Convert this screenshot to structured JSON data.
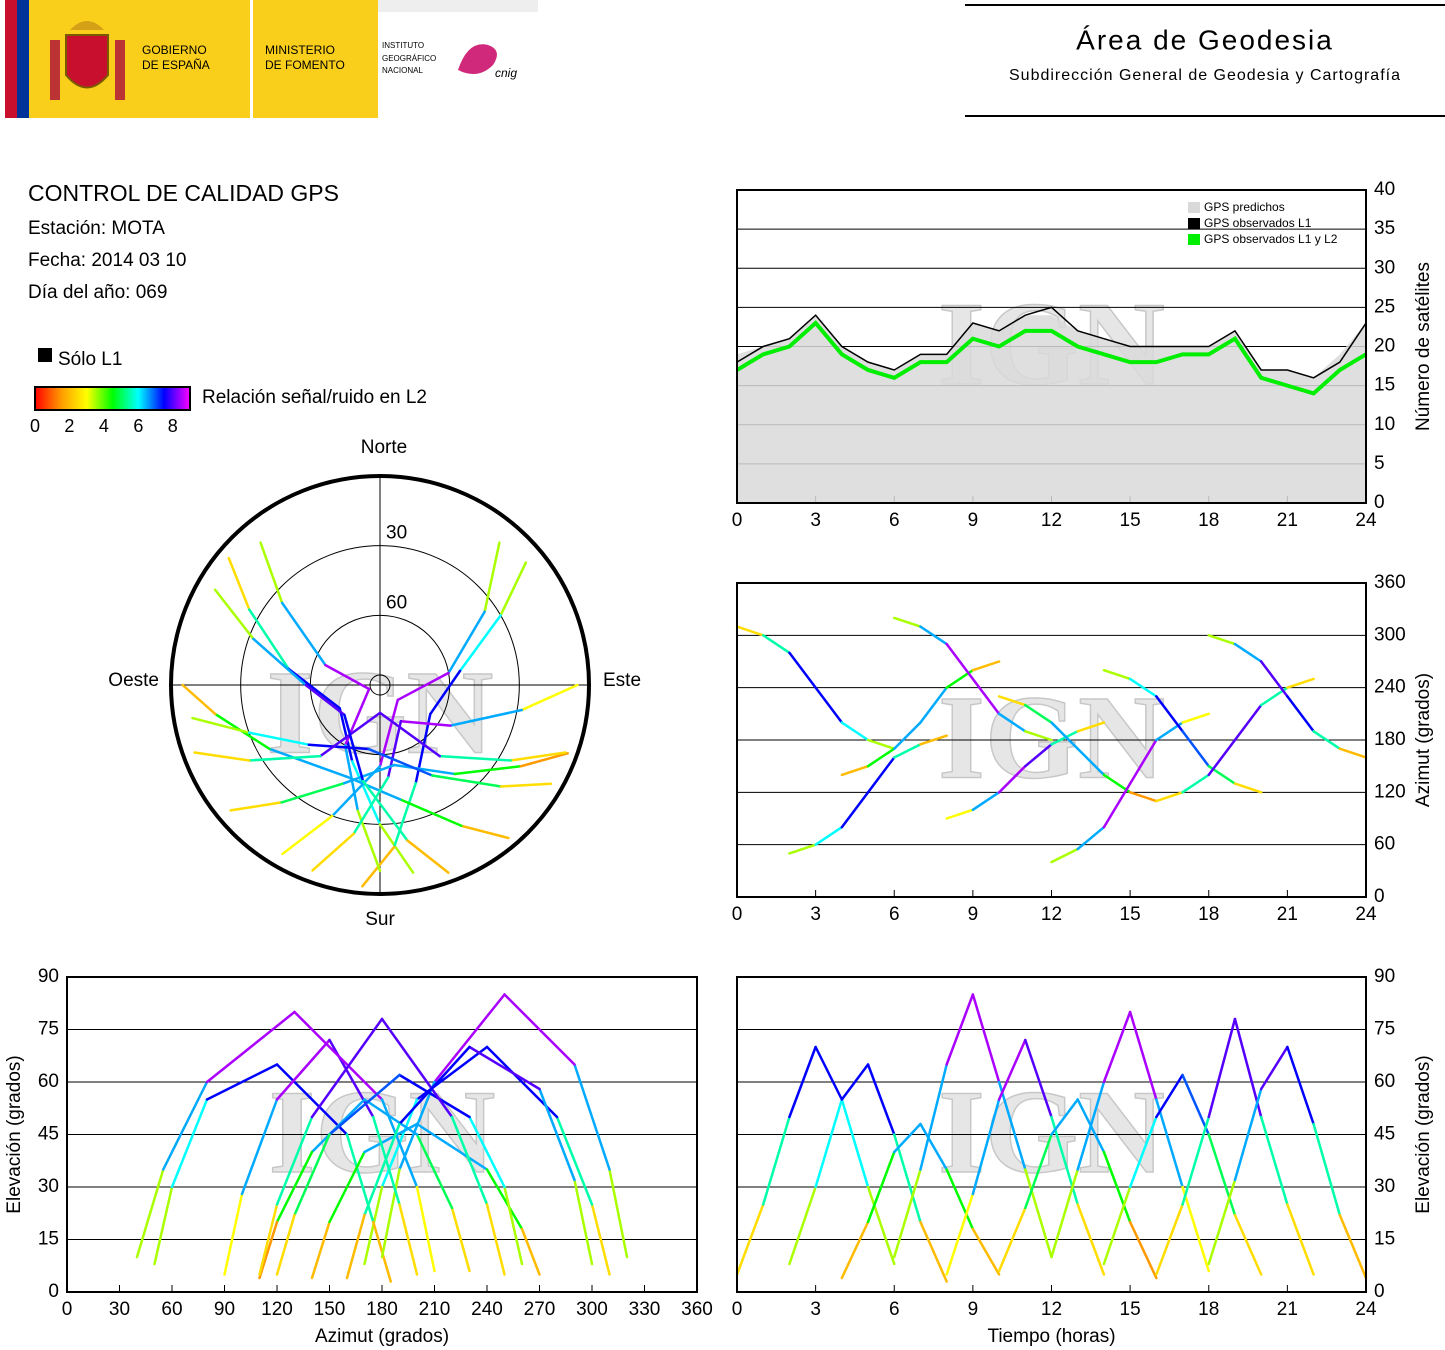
{
  "header": {
    "gobierno": [
      "GOBIERNO",
      "DE ESPAÑA"
    ],
    "ministerio": [
      "MINISTERIO",
      "DE FOMENTO"
    ],
    "instituto": [
      "INSTITUTO",
      "GEOGRÁFICO",
      "NACIONAL"
    ],
    "cnig": "cnig",
    "area": "Área de Geodesia",
    "subdireccion": "Subdirección General de Geodesia y Cartografía"
  },
  "info": {
    "title": "CONTROL DE CALIDAD GPS",
    "station": "Estación: MOTA",
    "date": "Fecha: 2014 03 10",
    "doy": "Día del año: 069",
    "l1_only": "Sólo L1",
    "l1_color": "#000000",
    "colorbar": {
      "label": "Relación señal/ruido en L2",
      "lim": [
        0,
        9
      ],
      "ticks": [
        0,
        2,
        4,
        6,
        8
      ],
      "colors": [
        "#ff0000",
        "#ff9900",
        "#ffff00",
        "#00ff00",
        "#00ffff",
        "#0000ff",
        "#ff00ff"
      ]
    }
  },
  "tracks": [
    {
      "time": [
        0,
        1,
        2,
        3,
        4,
        5,
        6
      ],
      "azimuth": [
        310,
        300,
        280,
        240,
        200,
        180,
        170
      ],
      "elevation": [
        5,
        25,
        50,
        70,
        55,
        30,
        8
      ],
      "snr": [
        1,
        4,
        7,
        8,
        7,
        5,
        2
      ]
    },
    {
      "time": [
        2,
        3,
        4,
        5,
        6,
        7,
        8
      ],
      "azimuth": [
        50,
        60,
        80,
        120,
        160,
        175,
        185
      ],
      "elevation": [
        8,
        30,
        55,
        65,
        45,
        20,
        3
      ],
      "snr": [
        2,
        5,
        7,
        8,
        7,
        4,
        0
      ]
    },
    {
      "time": [
        4,
        5,
        6,
        7,
        8,
        9,
        10
      ],
      "azimuth": [
        140,
        150,
        170,
        200,
        240,
        260,
        270
      ],
      "elevation": [
        4,
        20,
        40,
        48,
        35,
        18,
        5
      ],
      "snr": [
        1,
        3,
        6,
        7,
        6,
        3,
        1
      ]
    },
    {
      "time": [
        6,
        7,
        8,
        9,
        10,
        11,
        12
      ],
      "azimuth": [
        320,
        310,
        290,
        250,
        210,
        190,
        180
      ],
      "elevation": [
        10,
        35,
        65,
        85,
        60,
        35,
        10
      ],
      "snr": [
        2,
        5,
        8,
        9,
        8,
        5,
        2
      ]
    },
    {
      "time": [
        8,
        9,
        10,
        11,
        12,
        13,
        14
      ],
      "azimuth": [
        90,
        100,
        120,
        150,
        175,
        190,
        200
      ],
      "elevation": [
        5,
        28,
        55,
        72,
        50,
        25,
        5
      ],
      "snr": [
        1,
        5,
        8,
        9,
        7,
        4,
        1
      ]
    },
    {
      "time": [
        10,
        11,
        12,
        13,
        14,
        15,
        16
      ],
      "azimuth": [
        230,
        220,
        200,
        170,
        140,
        120,
        110
      ],
      "elevation": [
        6,
        24,
        45,
        55,
        40,
        20,
        4
      ],
      "snr": [
        1,
        4,
        6,
        7,
        6,
        3,
        0
      ]
    },
    {
      "time": [
        12,
        13,
        14,
        15,
        16,
        17,
        18
      ],
      "azimuth": [
        40,
        55,
        80,
        130,
        180,
        200,
        210
      ],
      "elevation": [
        10,
        35,
        60,
        80,
        55,
        30,
        6
      ],
      "snr": [
        2,
        5,
        8,
        9,
        8,
        5,
        1
      ]
    },
    {
      "time": [
        14,
        15,
        16,
        17,
        18,
        19,
        20
      ],
      "azimuth": [
        260,
        250,
        230,
        190,
        150,
        130,
        120
      ],
      "elevation": [
        8,
        30,
        50,
        62,
        45,
        22,
        5
      ],
      "snr": [
        2,
        5,
        7,
        8,
        6,
        4,
        1
      ]
    },
    {
      "time": [
        16,
        17,
        18,
        19,
        20,
        21,
        22
      ],
      "azimuth": [
        110,
        120,
        140,
        180,
        220,
        240,
        250
      ],
      "elevation": [
        5,
        25,
        50,
        78,
        50,
        25,
        5
      ],
      "snr": [
        1,
        4,
        7,
        9,
        7,
        4,
        1
      ]
    },
    {
      "time": [
        18,
        19,
        20,
        21,
        22,
        23,
        24
      ],
      "azimuth": [
        300,
        290,
        270,
        230,
        190,
        170,
        160
      ],
      "elevation": [
        8,
        32,
        58,
        70,
        48,
        22,
        4
      ],
      "snr": [
        2,
        5,
        8,
        8,
        7,
        4,
        0
      ]
    }
  ],
  "chart_data": [
    {
      "type": "line",
      "watermark": "IGN",
      "y_label": "Número de satélites",
      "x": [
        0,
        1,
        2,
        3,
        4,
        5,
        6,
        7,
        8,
        9,
        10,
        11,
        12,
        13,
        14,
        15,
        16,
        17,
        18,
        19,
        20,
        21,
        22,
        23,
        24
      ],
      "series": [
        {
          "name": "GPS predichos",
          "color": "#d9d9d9",
          "values": [
            19,
            20,
            21,
            24,
            20,
            18,
            17,
            19,
            19,
            23,
            22,
            24,
            24,
            22,
            21,
            20,
            20,
            20,
            20,
            22,
            17,
            17,
            16,
            19,
            23
          ]
        },
        {
          "name": "GPS observados L1",
          "color": "#000000",
          "values": [
            18,
            20,
            21,
            24,
            20,
            18,
            17,
            19,
            19,
            23,
            22,
            24,
            25,
            22,
            21,
            20,
            20,
            20,
            20,
            22,
            17,
            17,
            16,
            18,
            23
          ]
        },
        {
          "name": "GPS observados L1 y L2",
          "color": "#00ee00",
          "values": [
            17,
            19,
            20,
            23,
            19,
            17,
            16,
            18,
            18,
            21,
            20,
            22,
            22,
            20,
            19,
            18,
            18,
            19,
            19,
            21,
            16,
            15,
            14,
            17,
            19
          ]
        }
      ],
      "xlim": [
        0,
        24
      ],
      "xticks": [
        0,
        3,
        6,
        9,
        12,
        15,
        18,
        21,
        24
      ],
      "ylim": [
        0,
        40
      ],
      "yticks": [
        0,
        5,
        10,
        15,
        20,
        25,
        30,
        35,
        40
      ],
      "grid": true,
      "legend": "top-right"
    },
    {
      "type": "skyplot",
      "watermark": "IGN",
      "directions": [
        "Norte",
        "Este",
        "Sur",
        "Oeste"
      ],
      "rlim": [
        90,
        0
      ],
      "rticks": [
        30,
        60
      ]
    },
    {
      "type": "azimuth-time",
      "watermark": "IGN",
      "y_label": "Azimut (grados)",
      "xlim": [
        0,
        24
      ],
      "xticks": [
        0,
        3,
        6,
        9,
        12,
        15,
        18,
        21,
        24
      ],
      "ylim": [
        0,
        360
      ],
      "yticks": [
        0,
        60,
        120,
        180,
        240,
        300,
        360
      ],
      "grid": true
    },
    {
      "type": "elevation-azimuth",
      "watermark": "IGN",
      "x_label": "Azimut (grados)",
      "y_label": "Elevación (grados)",
      "xlim": [
        0,
        360
      ],
      "xticks": [
        0,
        30,
        60,
        90,
        120,
        150,
        180,
        210,
        240,
        270,
        300,
        330,
        360
      ],
      "ylim": [
        0,
        90
      ],
      "yticks": [
        0,
        15,
        30,
        45,
        60,
        75,
        90
      ],
      "grid": true
    },
    {
      "type": "elevation-time",
      "watermark": "IGN",
      "x_label": "Tiempo (horas)",
      "y_label": "Elevación (grados)",
      "xlim": [
        0,
        24
      ],
      "xticks": [
        0,
        3,
        6,
        9,
        12,
        15,
        18,
        21,
        24
      ],
      "ylim": [
        0,
        90
      ],
      "yticks": [
        0,
        15,
        30,
        45,
        60,
        75,
        90
      ],
      "grid": true
    }
  ]
}
